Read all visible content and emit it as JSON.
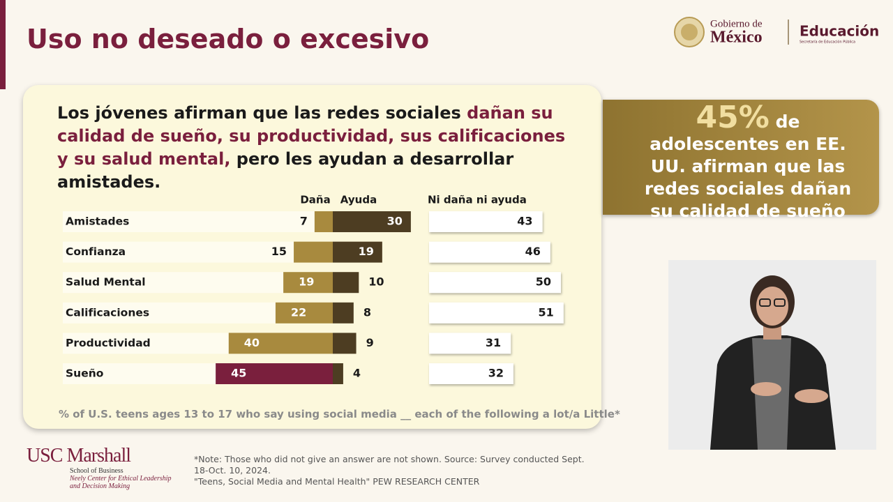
{
  "header": {
    "title": "Uso no deseado o excesivo",
    "logo_gob_line1": "Gobierno de",
    "logo_gob_line2": "México",
    "logo_edu": "Educación",
    "logo_edu_sub": "Secretaría de Educación Pública"
  },
  "headline": {
    "parts": [
      "Los jóvenes afirman que las redes sociales ",
      "dañan su calidad de sueño, su productividad, sus calificaciones y su salud mental,",
      " pero les ayudan a desarrollar amistades."
    ]
  },
  "chart_data": {
    "type": "diverging-bar",
    "categories": [
      "Amistades",
      "Confianza",
      "Salud Mental",
      "Calificaciones",
      "Productividad",
      "Sueño"
    ],
    "series": [
      {
        "name": "Daña",
        "color": "#a88a3e",
        "colors": [
          "#a88a3e",
          "#a88a3e",
          "#a88a3e",
          "#a88a3e",
          "#a88a3e",
          "#7a1f3d"
        ],
        "values": [
          7,
          15,
          19,
          22,
          40,
          45
        ]
      },
      {
        "name": "Ayuda",
        "color": "#4d3d22",
        "values": [
          30,
          19,
          10,
          8,
          9,
          4
        ]
      },
      {
        "name": "Ni daña ni ayuda",
        "color": "#ffffff",
        "values": [
          43,
          46,
          50,
          51,
          31,
          32
        ]
      }
    ],
    "note": "% of U.S. teens ages 13 to 17 who say using social media __ each of the following a lot/a Little*"
  },
  "callout": {
    "number": "45%",
    "text": "de adolescentes en EE. UU. afirman que las redes sociales dañan su calidad de sueño"
  },
  "footer": {
    "logo_main": "USC Marshall",
    "logo_sub1": "School of Business",
    "logo_sub2": "Neely Center for Ethical Leadership and Decision Making",
    "source_line1": "*Note: Those who did not give an answer are not shown. Source: Survey conducted Sept. 18-Oct. 10, 2024.",
    "source_line2": "\"Teens, Social Media and Mental Health\" PEW RESEARCH CENTER"
  }
}
